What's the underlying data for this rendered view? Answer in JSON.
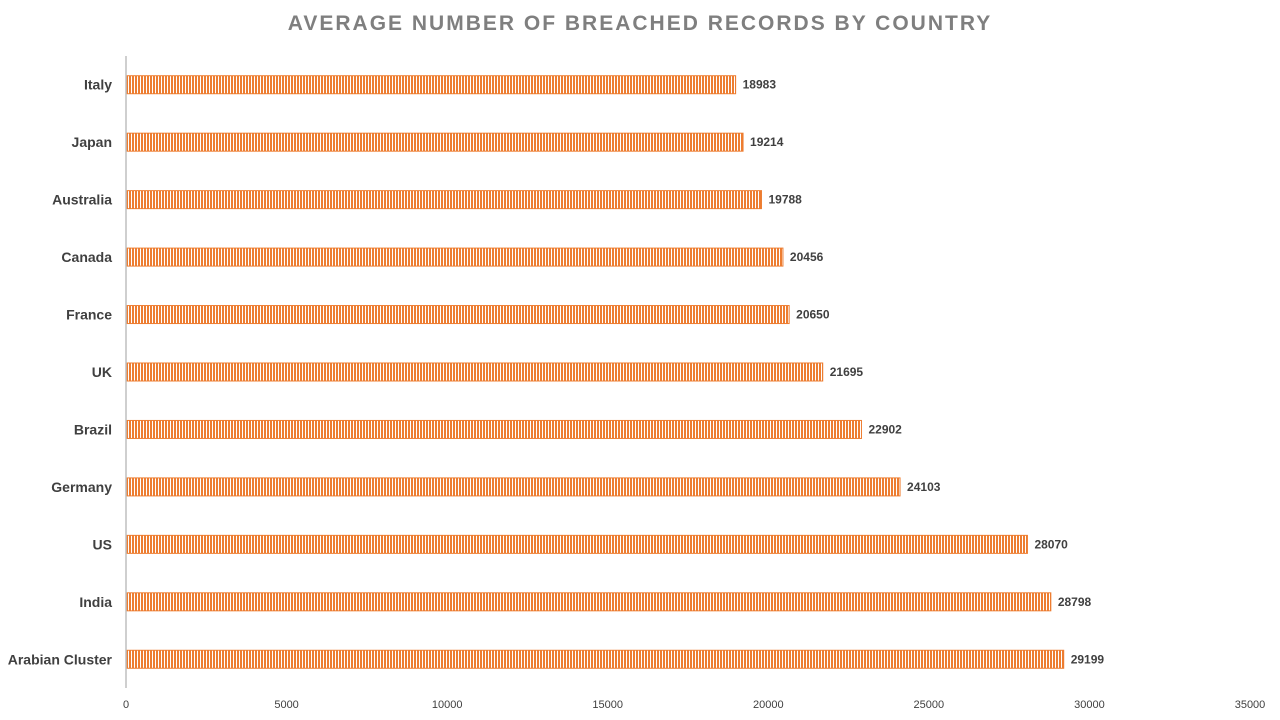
{
  "chart_data": {
    "type": "bar",
    "orientation": "horizontal",
    "title": "AVERAGE NUMBER OF BREACHED RECORDS BY COUNTRY",
    "xlabel": "",
    "ylabel": "",
    "categories": [
      "Italy",
      "Japan",
      "Australia",
      "Canada",
      "France",
      "UK",
      "Brazil",
      "Germany",
      "US",
      "India",
      "Arabian Cluster"
    ],
    "values": [
      18983,
      19214,
      19788,
      20456,
      20650,
      21695,
      22902,
      24103,
      28070,
      28798,
      29199
    ],
    "xlim": [
      0,
      35000
    ],
    "x_ticks": [
      "0",
      "5000",
      "10000",
      "15000",
      "20000",
      "25000",
      "30000",
      "35000"
    ],
    "grid": false,
    "legend": "none",
    "colors": {
      "bar": "#ed7d31",
      "stripe": "#ffffff",
      "axis": "#bfbfbf",
      "title": "#7f7f7f",
      "text": "#404040"
    }
  }
}
